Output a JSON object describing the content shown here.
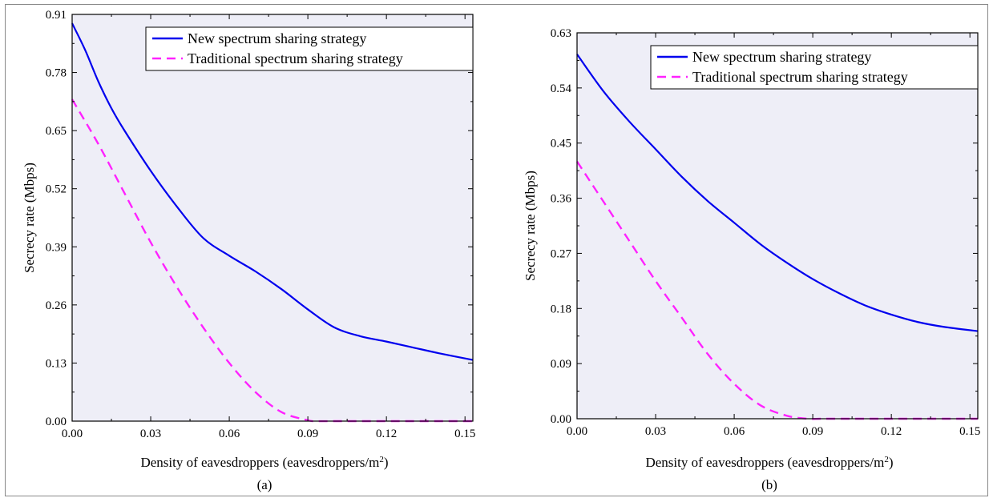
{
  "chart_data": [
    {
      "type": "line",
      "caption": "(a)",
      "xlabel": "Density of eavesdroppers  (eavesdroppers/m",
      "xlabel_sup": "2",
      "xlabel_end": ")",
      "ylabel": "Secrecy rate (Mbps)",
      "xlim": [
        0,
        0.153
      ],
      "ylim": [
        0,
        0.91
      ],
      "xticks": [
        "0.00",
        "0.03",
        "0.06",
        "0.09",
        "0.12",
        "0.15"
      ],
      "yticks": [
        "0.00",
        "0.13",
        "0.26",
        "0.39",
        "0.52",
        "0.65",
        "0.78",
        "0.91"
      ],
      "legend_position": "top-right",
      "series": [
        {
          "name": "New spectrum sharing strategy",
          "color": "#0000ee",
          "dash": "solid",
          "x": [
            0,
            0.005,
            0.01,
            0.015,
            0.02,
            0.03,
            0.04,
            0.05,
            0.06,
            0.07,
            0.08,
            0.09,
            0.1,
            0.11,
            0.12,
            0.13,
            0.14,
            0.153
          ],
          "y": [
            0.89,
            0.83,
            0.76,
            0.7,
            0.65,
            0.56,
            0.48,
            0.41,
            0.37,
            0.335,
            0.295,
            0.25,
            0.21,
            0.19,
            0.178,
            0.165,
            0.152,
            0.137
          ]
        },
        {
          "name": "Traditional spectrum sharing strategy",
          "color": "#ff22ff",
          "dash": "dashed",
          "x": [
            0,
            0.01,
            0.02,
            0.03,
            0.04,
            0.05,
            0.06,
            0.07,
            0.08,
            0.09,
            0.093,
            0.1,
            0.12,
            0.153
          ],
          "y": [
            0.72,
            0.62,
            0.51,
            0.4,
            0.3,
            0.21,
            0.13,
            0.065,
            0.02,
            0.002,
            0.0,
            0.0,
            0.0,
            0.0
          ]
        }
      ]
    },
    {
      "type": "line",
      "caption": "(b)",
      "xlabel": "Density of eavesdroppers  (eavesdroppers/m",
      "xlabel_sup": "2",
      "xlabel_end": ")",
      "ylabel": "Secrecy rate (Mbps)",
      "xlim": [
        0,
        0.153
      ],
      "ylim": [
        0,
        0.63
      ],
      "xticks": [
        "0.00",
        "0.03",
        "0.06",
        "0.09",
        "0.12",
        "0.15"
      ],
      "yticks": [
        "0.00",
        "0.09",
        "0.18",
        "0.27",
        "0.36",
        "0.45",
        "0.54",
        "0.63"
      ],
      "legend_position": "top-right",
      "series": [
        {
          "name": "New spectrum sharing strategy",
          "color": "#0000ee",
          "dash": "solid",
          "x": [
            0,
            0.01,
            0.02,
            0.03,
            0.04,
            0.05,
            0.06,
            0.07,
            0.08,
            0.09,
            0.1,
            0.11,
            0.12,
            0.13,
            0.14,
            0.153
          ],
          "y": [
            0.595,
            0.535,
            0.485,
            0.44,
            0.395,
            0.355,
            0.32,
            0.285,
            0.255,
            0.228,
            0.205,
            0.185,
            0.17,
            0.158,
            0.15,
            0.143
          ]
        },
        {
          "name": "Traditional spectrum sharing strategy",
          "color": "#ff22ff",
          "dash": "dashed",
          "x": [
            0,
            0.01,
            0.02,
            0.03,
            0.04,
            0.05,
            0.06,
            0.07,
            0.08,
            0.088,
            0.093,
            0.1,
            0.12,
            0.153
          ],
          "y": [
            0.42,
            0.355,
            0.29,
            0.225,
            0.165,
            0.105,
            0.057,
            0.022,
            0.005,
            0.0,
            0.0,
            0.0,
            0.0,
            0.0
          ]
        }
      ]
    }
  ]
}
